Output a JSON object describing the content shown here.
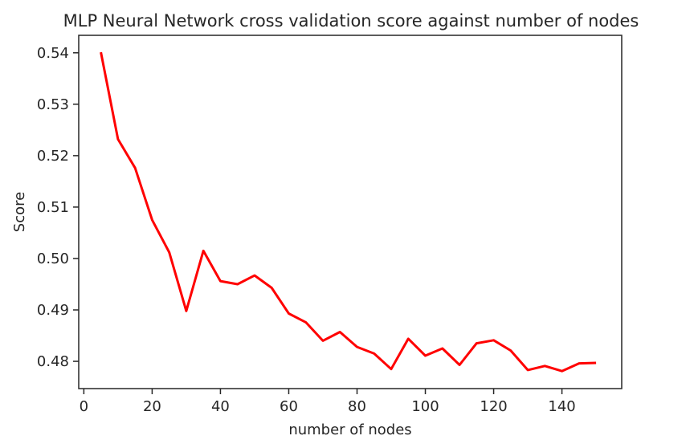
{
  "chart_data": {
    "type": "line",
    "title": "MLP Neural Network cross validation score against number of nodes",
    "xlabel": "number of nodes",
    "ylabel": "Score",
    "xlim": [
      -1.5,
      157.5
    ],
    "ylim": [
      0.4747,
      0.5434
    ],
    "xticks": [
      0,
      20,
      40,
      60,
      80,
      100,
      120,
      140
    ],
    "xtick_labels": [
      "0",
      "20",
      "40",
      "60",
      "80",
      "100",
      "120",
      "140"
    ],
    "yticks": [
      0.48,
      0.49,
      0.5,
      0.51,
      0.52,
      0.53,
      0.54
    ],
    "ytick_labels": [
      "0.48",
      "0.49",
      "0.50",
      "0.51",
      "0.52",
      "0.53",
      "0.54"
    ],
    "grid": false,
    "legend": "none",
    "series": [
      {
        "color": "#ff0000",
        "x": [
          5,
          10,
          15,
          20,
          25,
          30,
          35,
          40,
          45,
          50,
          55,
          60,
          65,
          70,
          75,
          80,
          85,
          90,
          95,
          100,
          105,
          110,
          115,
          120,
          125,
          130,
          135,
          140,
          145,
          150
        ],
        "y": [
          0.5401,
          0.5232,
          0.5176,
          0.5075,
          0.5012,
          0.4898,
          0.5015,
          0.4956,
          0.495,
          0.4967,
          0.4943,
          0.4893,
          0.4876,
          0.484,
          0.4857,
          0.4828,
          0.4815,
          0.4785,
          0.4844,
          0.4811,
          0.4825,
          0.4793,
          0.4835,
          0.4841,
          0.4821,
          0.4783,
          0.4791,
          0.4781,
          0.4796,
          0.4797
        ]
      }
    ]
  }
}
